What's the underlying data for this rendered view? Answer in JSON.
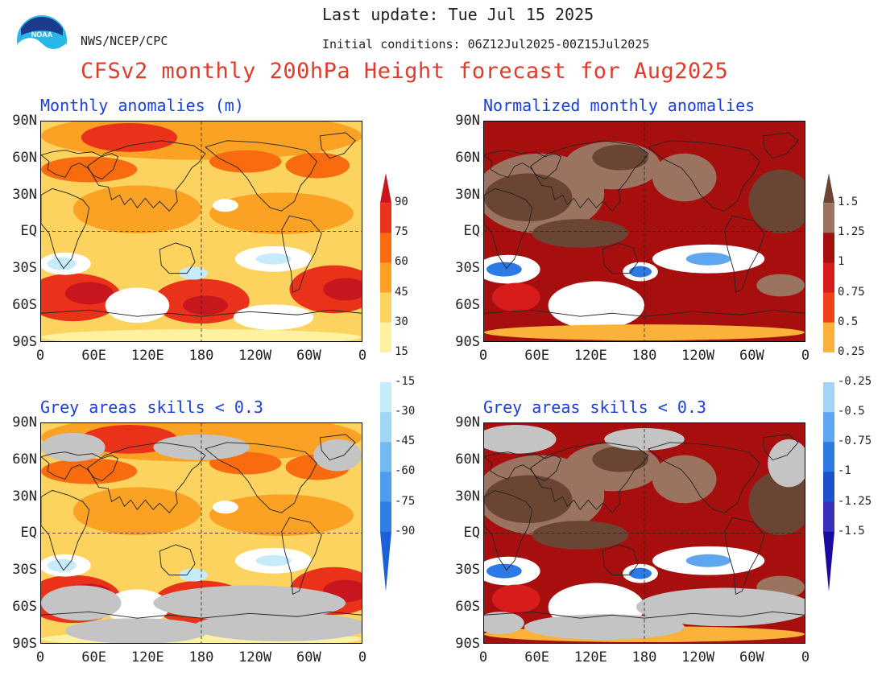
{
  "header": {
    "last_update": "Last update: Tue Jul 15 2025",
    "org": "NWS/NCEP/CPC",
    "init_conditions": "Initial conditions: 06Z12Jul2025-00Z15Jul2025",
    "title": "CFSv2 monthly 200hPa Height forecast for Aug2025",
    "logo_text": "NOAA"
  },
  "panels": [
    {
      "title": "Monthly anomalies (m)",
      "scheme": "warm"
    },
    {
      "title": "Normalized monthly anomalies",
      "scheme": "norm"
    },
    {
      "title": "Grey areas skills < 0.3",
      "scheme": "warm"
    },
    {
      "title": "Grey areas skills < 0.3",
      "scheme": "norm"
    }
  ],
  "axes": {
    "lat_ticks": [
      "90N",
      "60N",
      "30N",
      "EQ",
      "30S",
      "60S",
      "90S"
    ],
    "lon_ticks": [
      "0",
      "60E",
      "120E",
      "180",
      "120W",
      "60W",
      "0"
    ]
  },
  "colorbars": {
    "left": {
      "labels": [
        "90",
        "75",
        "60",
        "45",
        "30",
        "15",
        "-15",
        "-30",
        "-45",
        "-60",
        "-75",
        "-90"
      ],
      "colors": [
        "#c8161e",
        "#e93219",
        "#f96b0f",
        "#fba225",
        "#fdd35f",
        "#fef1a0",
        "#ffffff",
        "#c6ecfa",
        "#a0d6f6",
        "#74baf0",
        "#4e9ceb",
        "#2f7fe3",
        "#1c60d9"
      ]
    },
    "right": {
      "labels": [
        "1.5",
        "1.25",
        "1",
        "0.75",
        "0.5",
        "0.25",
        "-0.25",
        "-0.5",
        "-0.75",
        "-1",
        "-1.25",
        "-1.5"
      ],
      "colors": [
        "#6a4533",
        "#9a7460",
        "#a70f0f",
        "#d81c1c",
        "#f0411a",
        "#fbb23a",
        "#ffffff",
        "#a6d4f8",
        "#5ea7f0",
        "#2b7ae6",
        "#1d50cc",
        "#3a2fbd",
        "#1a0aa0"
      ]
    }
  },
  "palettes": {
    "warm": [
      "#fef1a0",
      "#fdd35f",
      "#fba225",
      "#f96b0f",
      "#e93219",
      "#c8161e"
    ],
    "cold": [
      "#c6ecfa",
      "#a0d6f6",
      "#74baf0"
    ],
    "norm": [
      "#fbb23a",
      "#f0411a",
      "#d81c1c",
      "#a70f0f",
      "#9a7460",
      "#6a4533"
    ],
    "norm_cold": [
      "#a6d4f8",
      "#5ea7f0",
      "#2b7ae6"
    ],
    "grey": "#c4c4c4",
    "title_red": "#e03c2c",
    "title_blue": "#1a40d8"
  }
}
